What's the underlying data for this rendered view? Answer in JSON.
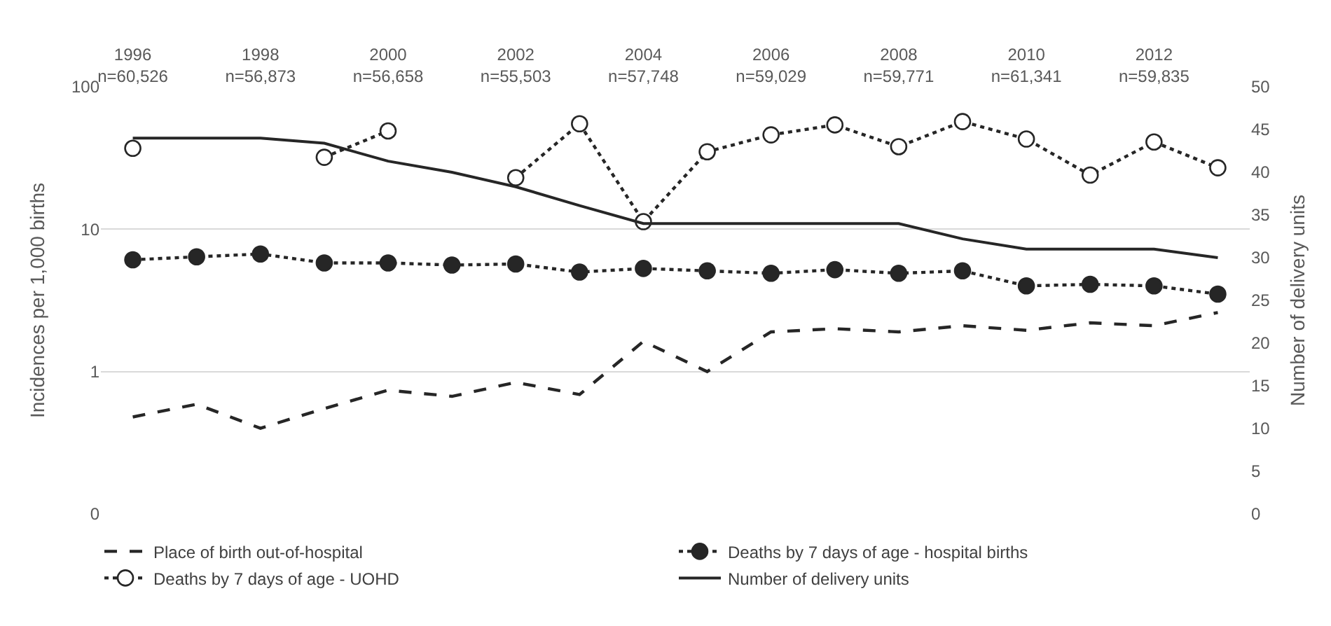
{
  "chart_data": {
    "type": "line",
    "categories": [
      "1996\nn=60,526",
      null,
      "1998\nn=56,873",
      null,
      "2000\nn=56,658",
      null,
      "2002\nn=55,503",
      null,
      "2004\nn=57,748",
      null,
      "2006\nn=59,029",
      null,
      "2008\nn=59,771",
      null,
      "2010\nn=61,341",
      null,
      "2012\nn=59,835",
      null
    ],
    "ylabel": "Incidences per 1,000 births",
    "y2label": "Number of delivery units",
    "log": "y",
    "ylim": [
      0.1,
      100
    ],
    "yticks": [
      {
        "value": 0.1,
        "label": "0"
      },
      1,
      10,
      100
    ],
    "y2lim": [
      0,
      50
    ],
    "y2ticks": [
      0,
      5,
      10,
      15,
      20,
      25,
      30,
      35,
      40,
      45,
      50
    ],
    "grid": "y",
    "legend": "bottom",
    "series": [
      {
        "name": "Place of birth out-of-hospital",
        "color": "#262626",
        "line_style": "dashed",
        "marker": "none",
        "values": [
          0.48,
          0.59,
          0.4,
          0.55,
          0.74,
          0.67,
          0.84,
          0.69,
          1.63,
          1.0,
          1.9,
          2.0,
          1.9,
          2.1,
          1.95,
          2.2,
          2.1,
          2.6
        ]
      },
      {
        "name": "Deaths by 7 days of age - hospital births",
        "color": "#262626",
        "line_style": "dotted",
        "marker": "circle",
        "values": [
          6.1,
          6.4,
          6.7,
          5.8,
          5.8,
          5.6,
          5.7,
          5.0,
          5.3,
          5.1,
          4.9,
          5.2,
          4.9,
          5.1,
          4.0,
          4.1,
          4.0,
          3.5
        ]
      },
      {
        "name": "Deaths by 7 days of age - UOHD",
        "color": "#262626",
        "line_style": "dotted",
        "marker": "circle",
        "colors": [
          "#ffffff",
          "#ffffff",
          "#ffffff",
          "#ffffff",
          "#ffffff",
          "#ffffff",
          "#ffffff",
          "#ffffff",
          "#ffffff",
          "#ffffff",
          "#ffffff",
          "#ffffff",
          "#ffffff",
          "#ffffff",
          "#ffffff",
          "#ffffff",
          "#ffffff",
          "#ffffff"
        ],
        "values": [
          37,
          null,
          null,
          32,
          49,
          null,
          23,
          55,
          11.3,
          35,
          46,
          54,
          38,
          57,
          43,
          24,
          41,
          27
        ]
      },
      {
        "name": "Number of delivery units",
        "color": "#262626",
        "line_style": "solid",
        "marker": "none",
        "axis": "y2",
        "values": [
          44,
          44,
          44,
          43.4,
          41.3,
          40.0,
          38.3,
          36.1,
          34,
          34,
          34,
          34,
          34,
          32.2,
          31,
          31,
          31,
          30
        ]
      }
    ]
  }
}
